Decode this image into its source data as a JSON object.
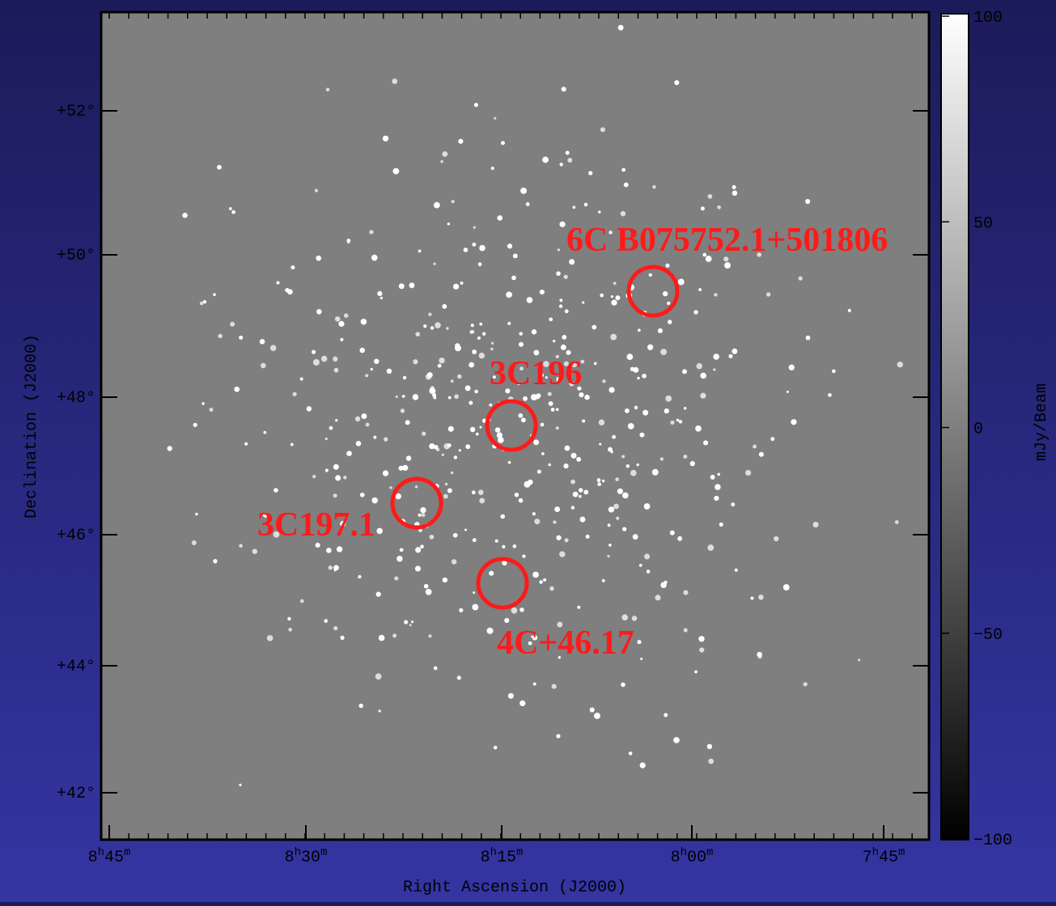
{
  "image": {
    "x_axis": {
      "title": "Right Ascension (J2000)",
      "ticks": [
        [
          "8",
          "h",
          "45",
          "m"
        ],
        [
          "8",
          "h",
          "30",
          "m"
        ],
        [
          "8",
          "h",
          "15",
          "m"
        ],
        [
          "8",
          "h",
          "00",
          "m"
        ],
        [
          "7",
          "h",
          "45",
          "m"
        ]
      ]
    },
    "y_axis": {
      "title": "Declination (J2000)",
      "ticks": [
        "+52°",
        "+50°",
        "+48°",
        "+46°",
        "+44°",
        "+42°"
      ]
    },
    "colorbar": {
      "title": "mJy/Beam",
      "lim": [
        -100,
        100
      ],
      "ticks": [
        100,
        50,
        0,
        {
          "value": -50,
          "label": "−50"
        },
        {
          "value": -100,
          "label": "−100"
        }
      ]
    },
    "sources": [
      {
        "label": "6C B075752.1+501806"
      },
      {
        "label": "3C196"
      },
      {
        "label": "3C197.1"
      },
      {
        "label": "4C+46.17"
      }
    ]
  }
}
